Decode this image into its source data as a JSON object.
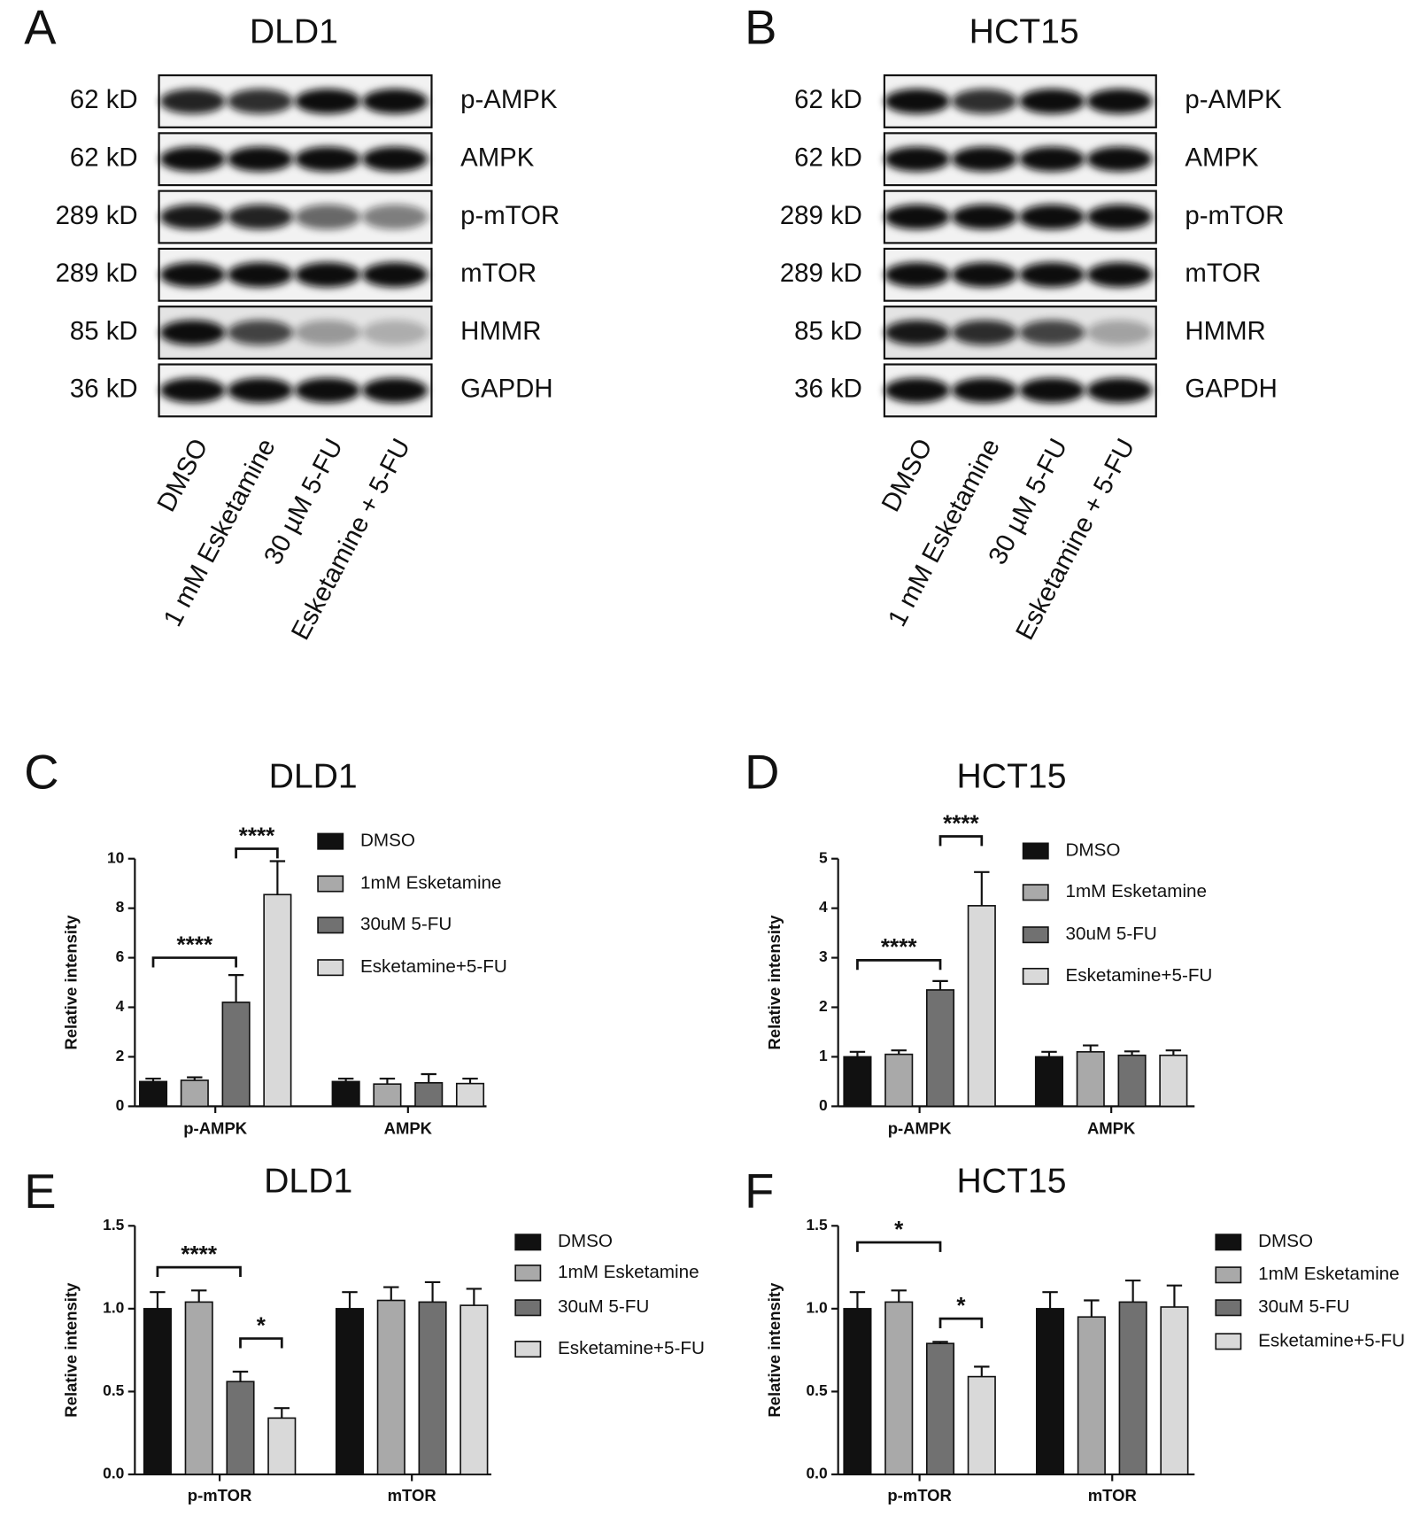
{
  "blots": [
    {
      "letter": "A",
      "title": "DLD1",
      "rows": [
        {
          "size": "62 kD",
          "protein": "p-AMPK"
        },
        {
          "size": "62 kD",
          "protein": "AMPK"
        },
        {
          "size": "289 kD",
          "protein": "p-mTOR"
        },
        {
          "size": "289 kD",
          "protein": "mTOR"
        },
        {
          "size": "85 kD",
          "protein": "HMMR"
        },
        {
          "size": "36 kD",
          "protein": "GAPDH"
        }
      ],
      "lanes": [
        "DMSO",
        "1 mM Esketamine",
        "30 µM 5-FU",
        "Esketamine + 5-FU"
      ]
    },
    {
      "letter": "B",
      "title": "HCT15",
      "rows": [
        {
          "size": "62 kD",
          "protein": "p-AMPK"
        },
        {
          "size": "62 kD",
          "protein": "AMPK"
        },
        {
          "size": "289 kD",
          "protein": "p-mTOR"
        },
        {
          "size": "289 kD",
          "protein": "mTOR"
        },
        {
          "size": "85 kD",
          "protein": "HMMR"
        },
        {
          "size": "36 kD",
          "protein": "GAPDH"
        }
      ],
      "lanes": [
        "DMSO",
        "1 mM Esketamine",
        "30 µM 5-FU",
        "Esketamine + 5-FU"
      ]
    }
  ],
  "chart_data": [
    {
      "type": "bar",
      "letter": "C",
      "title": "DLD1",
      "y_label": "Relative intensity",
      "categories": [
        "p-AMPK",
        "AMPK"
      ],
      "series": [
        {
          "name": "DMSO",
          "color": "#111111",
          "values": [
            1.0,
            1.0
          ],
          "errors": [
            0.12,
            0.12
          ]
        },
        {
          "name": "1mM Esketamine",
          "color": "#a9a9a9",
          "values": [
            1.05,
            0.9
          ],
          "errors": [
            0.12,
            0.22
          ]
        },
        {
          "name": "30uM 5-FU",
          "color": "#717171",
          "values": [
            4.2,
            0.95
          ],
          "errors": [
            1.1,
            0.35
          ]
        },
        {
          "name": "Esketamine+5-FU",
          "color": "#d9d9d9",
          "values": [
            8.55,
            0.92
          ],
          "errors": [
            1.35,
            0.2
          ]
        }
      ],
      "ylim": [
        0,
        10
      ],
      "yticks": [
        0,
        2,
        4,
        6,
        8,
        10
      ],
      "significance": [
        {
          "label": "****",
          "category": 0,
          "from": 0,
          "to": 2,
          "y": 6.0
        },
        {
          "label": "****",
          "category": 0,
          "from": 2,
          "to": 3,
          "y": 10.4
        }
      ]
    },
    {
      "type": "bar",
      "letter": "D",
      "title": "HCT15",
      "y_label": "Relative intensity",
      "categories": [
        "p-AMPK",
        "AMPK"
      ],
      "series": [
        {
          "name": "DMSO",
          "color": "#111111",
          "values": [
            1.0,
            1.0
          ],
          "errors": [
            0.1,
            0.1
          ]
        },
        {
          "name": "1mM Esketamine",
          "color": "#a9a9a9",
          "values": [
            1.05,
            1.1
          ],
          "errors": [
            0.08,
            0.13
          ]
        },
        {
          "name": "30uM 5-FU",
          "color": "#717171",
          "values": [
            2.35,
            1.03
          ],
          "errors": [
            0.18,
            0.08
          ]
        },
        {
          "name": "Esketamine+5-FU",
          "color": "#d9d9d9",
          "values": [
            4.05,
            1.03
          ],
          "errors": [
            0.68,
            0.1
          ]
        }
      ],
      "ylim": [
        0,
        5
      ],
      "yticks": [
        0,
        1,
        2,
        3,
        4,
        5
      ],
      "significance": [
        {
          "label": "****",
          "category": 0,
          "from": 0,
          "to": 2,
          "y": 2.95
        },
        {
          "label": "****",
          "category": 0,
          "from": 2,
          "to": 3,
          "y": 5.45
        }
      ]
    },
    {
      "type": "bar",
      "letter": "E",
      "title": "DLD1",
      "y_label": "Relative intensity",
      "categories": [
        "p-mTOR",
        "mTOR"
      ],
      "series": [
        {
          "name": "DMSO",
          "color": "#111111",
          "values": [
            1.0,
            1.0
          ],
          "errors": [
            0.1,
            0.1
          ]
        },
        {
          "name": "1mM Esketamine",
          "color": "#a9a9a9",
          "values": [
            1.04,
            1.05
          ],
          "errors": [
            0.07,
            0.08
          ]
        },
        {
          "name": "30uM 5-FU",
          "color": "#717171",
          "values": [
            0.56,
            1.04
          ],
          "errors": [
            0.06,
            0.12
          ]
        },
        {
          "name": "Esketamine+5-FU",
          "color": "#d9d9d9",
          "values": [
            0.34,
            1.02
          ],
          "errors": [
            0.06,
            0.1
          ]
        }
      ],
      "ylim": [
        0,
        1.5
      ],
      "yticks": [
        {
          "value": 0,
          "label": "0.0"
        },
        0.5,
        {
          "value": 1,
          "label": "1.0"
        },
        1.5
      ],
      "significance": [
        {
          "label": "****",
          "category": 0,
          "from": 0,
          "to": 2,
          "y": 1.25
        },
        {
          "label": "*",
          "category": 0,
          "from": 2,
          "to": 3,
          "y": 0.82
        }
      ]
    },
    {
      "type": "bar",
      "letter": "F",
      "title": "HCT15",
      "y_label": "Relative intensity",
      "categories": [
        "p-mTOR",
        "mTOR"
      ],
      "series": [
        {
          "name": "DMSO",
          "color": "#111111",
          "values": [
            1.0,
            1.0
          ],
          "errors": [
            0.1,
            0.1
          ]
        },
        {
          "name": "1mM Esketamine",
          "color": "#a9a9a9",
          "values": [
            1.04,
            0.95
          ],
          "errors": [
            0.07,
            0.1
          ]
        },
        {
          "name": "30uM 5-FU",
          "color": "#717171",
          "values": [
            0.79,
            1.04
          ],
          "errors": [
            0.01,
            0.13
          ]
        },
        {
          "name": "Esketamine+5-FU",
          "color": "#d9d9d9",
          "values": [
            0.59,
            1.01
          ],
          "errors": [
            0.06,
            0.13
          ]
        }
      ],
      "ylim": [
        0,
        1.5
      ],
      "yticks": [
        {
          "value": 0,
          "label": "0.0"
        },
        0.5,
        {
          "value": 1,
          "label": "1.0"
        },
        1.5
      ],
      "significance": [
        {
          "label": "*",
          "category": 0,
          "from": 0,
          "to": 2,
          "y": 1.4
        },
        {
          "label": "*",
          "category": 0,
          "from": 2,
          "to": 3,
          "y": 0.94
        }
      ]
    }
  ]
}
